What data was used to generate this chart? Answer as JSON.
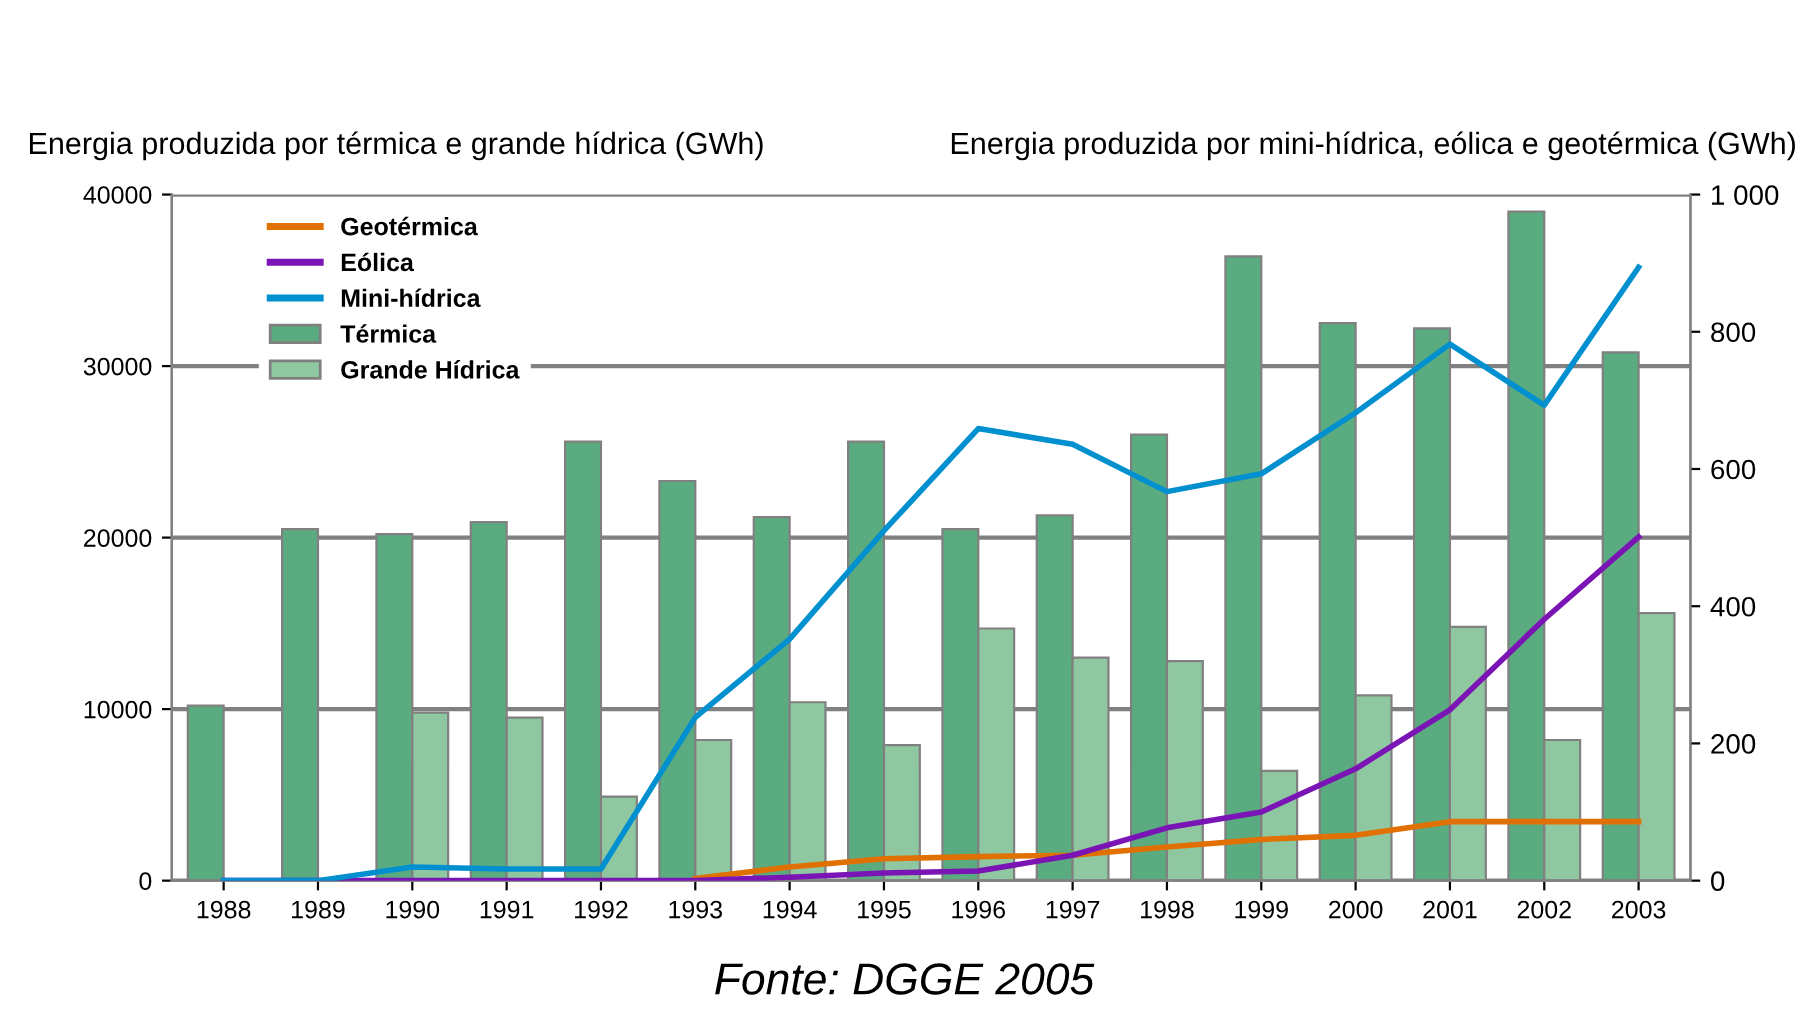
{
  "chart_data": {
    "type": "bar",
    "ylabel": "Energia produzida por térmica e grande hídrica (GWh)",
    "y2label": "Energia produzida por mini-hídrica, eólica e geotérmica (GWh)",
    "categories": [
      "1988",
      "1989",
      "1990",
      "1991",
      "1992",
      "1993",
      "1994",
      "1995",
      "1996",
      "1997",
      "1998",
      "1999",
      "2000",
      "2001",
      "2002",
      "2003"
    ],
    "series": [
      {
        "name": "Geotérmica",
        "type": "line",
        "axis": "y2",
        "color": "#e07000",
        "values": [
          null,
          null,
          null,
          null,
          null,
          3,
          20,
          32,
          35,
          37,
          49,
          60,
          66,
          86,
          86,
          86
        ]
      },
      {
        "name": "Eólica",
        "type": "line",
        "axis": "y2",
        "color": "#7a14b4",
        "values": [
          0,
          0,
          0,
          0,
          0,
          0,
          5,
          11,
          14,
          37,
          77,
          100,
          163,
          249,
          381,
          501
        ]
      },
      {
        "name": "Mini-hídrica",
        "type": "line",
        "axis": "y2",
        "color": "#0090d0",
        "values": [
          0,
          0,
          20,
          17,
          17,
          238,
          352,
          510,
          659,
          636,
          567,
          593,
          682,
          782,
          693,
          894
        ]
      },
      {
        "name": "Térmica",
        "color": "#5aac80",
        "values": [
          10200,
          20500,
          20200,
          20900,
          25600,
          23300,
          21200,
          25600,
          20500,
          21300,
          26000,
          36400,
          32500,
          32200,
          39000,
          30800
        ]
      },
      {
        "name": "Grande Hídrica",
        "color": "#8fc8a0",
        "values": [
          null,
          null,
          9800,
          9500,
          4900,
          8200,
          10400,
          7900,
          14700,
          13000,
          12800,
          6400,
          10800,
          14800,
          8200,
          15600
        ]
      }
    ],
    "ylim": [
      0,
      40000
    ],
    "yticks": [
      0,
      10000,
      20000,
      30000,
      40000
    ],
    "y2lim": [
      0,
      1000
    ],
    "y2ticks": [
      0,
      200,
      400,
      600,
      800,
      {
        "value": 1000,
        "label": "1 000"
      }
    ],
    "grid": "y",
    "legend": "top left",
    "annotations": [
      "Fonte: DGGE 2005"
    ]
  }
}
